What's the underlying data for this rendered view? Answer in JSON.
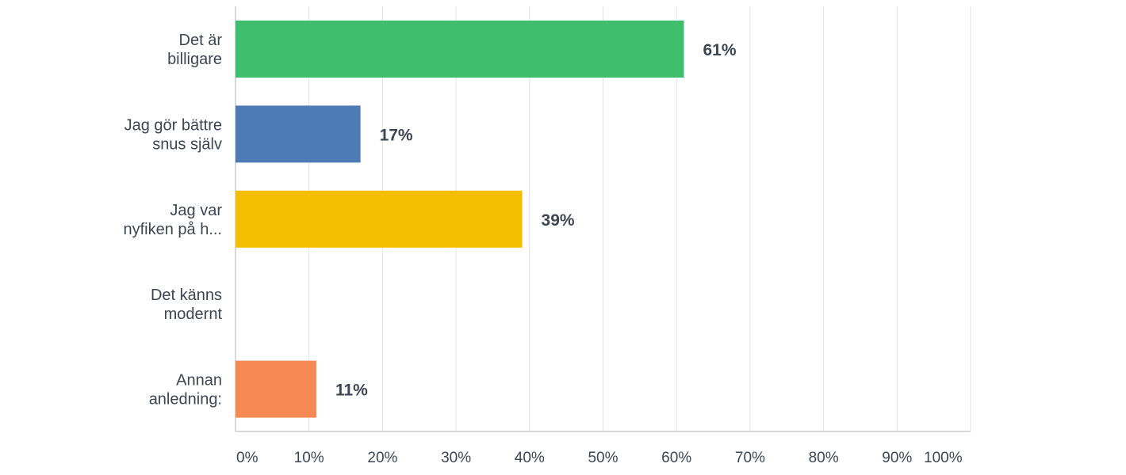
{
  "chart_data": {
    "type": "bar",
    "orientation": "horizontal",
    "categories": [
      [
        "Det är",
        "billigare"
      ],
      [
        "Jag gör bättre",
        "snus själv"
      ],
      [
        "Jag var",
        "nyfiken på h..."
      ],
      [
        "Det känns",
        "modernt"
      ],
      [
        "Annan",
        "anledning:"
      ]
    ],
    "values": [
      61,
      17,
      39,
      null,
      11
    ],
    "value_labels": [
      "61%",
      "17%",
      "39%",
      "",
      "11%"
    ],
    "colors": [
      "#3fbf6e",
      "#4e7ab5",
      "#f6be00",
      "#ffffff",
      "#f68a52"
    ],
    "xlim": [
      0,
      100
    ],
    "xticks": [
      "0%",
      "10%",
      "20%",
      "30%",
      "40%",
      "50%",
      "60%",
      "70%",
      "80%",
      "90%",
      "100%"
    ],
    "grid": true
  }
}
